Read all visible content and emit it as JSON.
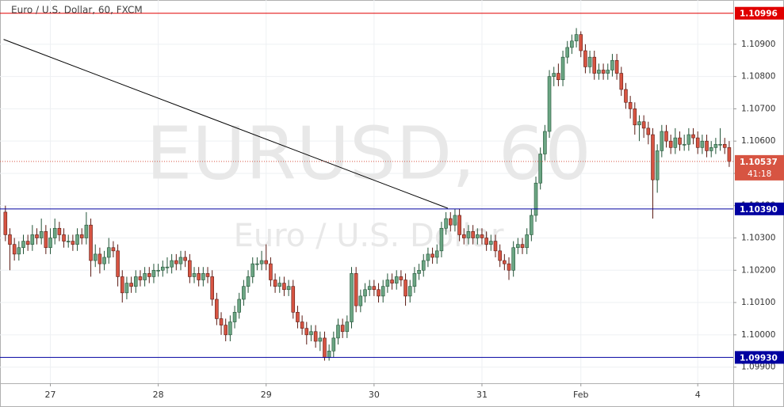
{
  "chart_data": {
    "type": "candlestick",
    "title": "Euro / U.S. Dollar, 60, FXCM",
    "watermark": "EURUSD, 60",
    "watermark_sub": "Euro / U.S. Dollar",
    "up_color": "#6ba583",
    "up_border": "#225437",
    "down_color": "#d75442",
    "down_border": "#5b1a13",
    "ylim": [
      1.0985,
      1.11037
    ],
    "yticks": [
      {
        "value": 1.099,
        "label": "1.09900"
      },
      {
        "value": 1.1,
        "label": "1.10000"
      },
      {
        "value": 1.101,
        "label": "1.10100"
      },
      {
        "value": 1.102,
        "label": "1.10200"
      },
      {
        "value": 1.103,
        "label": "1.10300"
      },
      {
        "value": 1.104,
        "label": "1.10400"
      },
      {
        "value": 1.105,
        "label": "1.10500"
      },
      {
        "value": 1.106,
        "label": "1.10600"
      },
      {
        "value": 1.107,
        "label": "1.10700"
      },
      {
        "value": 1.108,
        "label": "1.10800"
      },
      {
        "value": 1.109,
        "label": "1.10900"
      }
    ],
    "xticks": [
      {
        "value": 10,
        "label": "27"
      },
      {
        "value": 34,
        "label": "28"
      },
      {
        "value": 58,
        "label": "29"
      },
      {
        "value": 82,
        "label": "30"
      },
      {
        "value": 106,
        "label": "31"
      },
      {
        "value": 128,
        "label": "Feb"
      },
      {
        "value": 154,
        "label": "4"
      }
    ],
    "xlim": [
      -1.2,
      161.9
    ],
    "grid": true,
    "levels": [
      {
        "value": 1.10996,
        "label": "1.10996",
        "color": "#e00000"
      },
      {
        "value": 1.1039,
        "label": "1.10390",
        "color": "#0000a0"
      },
      {
        "value": 1.0993,
        "label": "1.09930",
        "color": "#0000a0"
      }
    ],
    "last": 1.10537,
    "countdown": "41:18",
    "last_color": "#d75442",
    "trendline": {
      "x": [
        -0.4,
        98.4
      ],
      "y": [
        1.10915,
        1.10392
      ],
      "color": "#000000"
    },
    "ohlc": [
      [
        1.1038,
        1.104,
        1.1029,
        1.1031
      ],
      [
        1.1031,
        1.1033,
        1.102,
        1.1028
      ],
      [
        1.1028,
        1.103,
        1.1023,
        1.1025
      ],
      [
        1.1025,
        1.1029,
        1.1023,
        1.1027
      ],
      [
        1.1027,
        1.1031,
        1.1025,
        1.1029
      ],
      [
        1.1029,
        1.1031,
        1.1026,
        1.1028
      ],
      [
        1.1028,
        1.1034,
        1.1026,
        1.1031
      ],
      [
        1.1031,
        1.1033,
        1.1028,
        1.103
      ],
      [
        1.103,
        1.1036,
        1.1028,
        1.1032
      ],
      [
        1.1032,
        1.1034,
        1.1025,
        1.1027
      ],
      [
        1.1027,
        1.1033,
        1.1025,
        1.103
      ],
      [
        1.103,
        1.1036,
        1.1028,
        1.1033
      ],
      [
        1.1033,
        1.1035,
        1.1029,
        1.1031
      ],
      [
        1.1031,
        1.1033,
        1.1027,
        1.1029
      ],
      [
        1.1029,
        1.1031,
        1.1027,
        1.1029
      ],
      [
        1.1029,
        1.1031,
        1.1026,
        1.1028
      ],
      [
        1.1028,
        1.1033,
        1.1026,
        1.1031
      ],
      [
        1.1031,
        1.1033,
        1.1028,
        1.103
      ],
      [
        1.103,
        1.1038,
        1.1028,
        1.1034
      ],
      [
        1.1034,
        1.1036,
        1.1018,
        1.1023
      ],
      [
        1.1023,
        1.1028,
        1.1021,
        1.1025
      ],
      [
        1.1025,
        1.1027,
        1.1019,
        1.1022
      ],
      [
        1.1022,
        1.1026,
        1.102,
        1.1024
      ],
      [
        1.1024,
        1.103,
        1.1022,
        1.1027
      ],
      [
        1.1027,
        1.1029,
        1.1024,
        1.1026
      ],
      [
        1.1026,
        1.1028,
        1.1015,
        1.1018
      ],
      [
        1.1018,
        1.102,
        1.101,
        1.1013
      ],
      [
        1.1013,
        1.1018,
        1.1011,
        1.1016
      ],
      [
        1.1016,
        1.1018,
        1.1013,
        1.1015
      ],
      [
        1.1015,
        1.102,
        1.1013,
        1.1018
      ],
      [
        1.1018,
        1.102,
        1.1015,
        1.1017
      ],
      [
        1.1017,
        1.1021,
        1.1015,
        1.1019
      ],
      [
        1.1019,
        1.1021,
        1.1016,
        1.1018
      ],
      [
        1.1018,
        1.1022,
        1.1016,
        1.102
      ],
      [
        1.102,
        1.1022,
        1.1018,
        1.102
      ],
      [
        1.102,
        1.1023,
        1.1018,
        1.1021
      ],
      [
        1.1021,
        1.1024,
        1.1019,
        1.1021
      ],
      [
        1.1021,
        1.1025,
        1.1019,
        1.1023
      ],
      [
        1.1023,
        1.1025,
        1.102,
        1.1022
      ],
      [
        1.1022,
        1.1026,
        1.102,
        1.1024
      ],
      [
        1.1024,
        1.1026,
        1.1021,
        1.1023
      ],
      [
        1.1023,
        1.1025,
        1.1016,
        1.1018
      ],
      [
        1.1018,
        1.1021,
        1.1016,
        1.1019
      ],
      [
        1.1019,
        1.1021,
        1.1015,
        1.1017
      ],
      [
        1.1017,
        1.1021,
        1.1015,
        1.1019
      ],
      [
        1.1019,
        1.1021,
        1.1016,
        1.1018
      ],
      [
        1.1018,
        1.102,
        1.1009,
        1.1011
      ],
      [
        1.1011,
        1.1013,
        1.1003,
        1.1005
      ],
      [
        1.1005,
        1.1007,
        1.1,
        1.1003
      ],
      [
        1.1003,
        1.1005,
        1.0998,
        1.1
      ],
      [
        1.1,
        1.1006,
        1.0998,
        1.1004
      ],
      [
        1.1004,
        1.1009,
        1.1002,
        1.1007
      ],
      [
        1.1007,
        1.1013,
        1.1005,
        1.1011
      ],
      [
        1.1011,
        1.1017,
        1.1009,
        1.1015
      ],
      [
        1.1015,
        1.102,
        1.1013,
        1.1018
      ],
      [
        1.1018,
        1.1024,
        1.1016,
        1.1022
      ],
      [
        1.1022,
        1.1024,
        1.102,
        1.1022
      ],
      [
        1.1022,
        1.1026,
        1.102,
        1.1023
      ],
      [
        1.1023,
        1.1028,
        1.102,
        1.1022
      ],
      [
        1.1022,
        1.1024,
        1.1015,
        1.1017
      ],
      [
        1.1017,
        1.1019,
        1.1013,
        1.1015
      ],
      [
        1.1015,
        1.1018,
        1.1013,
        1.1016
      ],
      [
        1.1016,
        1.1018,
        1.1012,
        1.1014
      ],
      [
        1.1014,
        1.1017,
        1.1012,
        1.1015
      ],
      [
        1.1015,
        1.1017,
        1.1005,
        1.1007
      ],
      [
        1.1007,
        1.1009,
        1.1002,
        1.1004
      ],
      [
        1.1004,
        1.1006,
        1.1,
        1.1002
      ],
      [
        1.1002,
        1.1004,
        1.0997,
        1.1
      ],
      [
        1.1,
        1.1003,
        1.0998,
        1.1001
      ],
      [
        1.1001,
        1.1003,
        1.0996,
        1.0998
      ],
      [
        1.0998,
        1.1001,
        1.0995,
        1.0999
      ],
      [
        1.0999,
        1.1001,
        1.0992,
        1.0993
      ],
      [
        1.0993,
        1.0997,
        1.0992,
        1.0995
      ],
      [
        1.0995,
        1.1001,
        1.0993,
        1.0999
      ],
      [
        1.0999,
        1.1005,
        1.0997,
        1.1003
      ],
      [
        1.1003,
        1.1005,
        1.0999,
        1.1001
      ],
      [
        1.1001,
        1.1006,
        1.0999,
        1.1004
      ],
      [
        1.1004,
        1.1021,
        1.1002,
        1.1019
      ],
      [
        1.1019,
        1.1021,
        1.1007,
        1.1009
      ],
      [
        1.1009,
        1.1014,
        1.1007,
        1.1012
      ],
      [
        1.1012,
        1.1016,
        1.101,
        1.1014
      ],
      [
        1.1014,
        1.1017,
        1.1012,
        1.1015
      ],
      [
        1.1015,
        1.1017,
        1.1012,
        1.1014
      ],
      [
        1.1014,
        1.1016,
        1.101,
        1.1012
      ],
      [
        1.1012,
        1.1017,
        1.101,
        1.1015
      ],
      [
        1.1015,
        1.1019,
        1.1013,
        1.1017
      ],
      [
        1.1017,
        1.1019,
        1.1014,
        1.1016
      ],
      [
        1.1016,
        1.102,
        1.1014,
        1.1018
      ],
      [
        1.1018,
        1.102,
        1.1015,
        1.1017
      ],
      [
        1.1017,
        1.1019,
        1.1009,
        1.1012
      ],
      [
        1.1012,
        1.1017,
        1.101,
        1.1015
      ],
      [
        1.1015,
        1.1021,
        1.1013,
        1.1019
      ],
      [
        1.1019,
        1.1022,
        1.1017,
        1.102
      ],
      [
        1.102,
        1.1025,
        1.1018,
        1.1023
      ],
      [
        1.1023,
        1.1027,
        1.1021,
        1.1025
      ],
      [
        1.1025,
        1.1027,
        1.1022,
        1.1024
      ],
      [
        1.1024,
        1.1028,
        1.1022,
        1.1026
      ],
      [
        1.1026,
        1.1035,
        1.1024,
        1.1033
      ],
      [
        1.1033,
        1.1038,
        1.1031,
        1.1036
      ],
      [
        1.1036,
        1.1038,
        1.1032,
        1.1034
      ],
      [
        1.1034,
        1.1039,
        1.1032,
        1.1037
      ],
      [
        1.1037,
        1.1039,
        1.1029,
        1.1031
      ],
      [
        1.1031,
        1.1033,
        1.1028,
        1.103
      ],
      [
        1.103,
        1.1034,
        1.1028,
        1.1032
      ],
      [
        1.1032,
        1.1034,
        1.1028,
        1.103
      ],
      [
        1.103,
        1.1033,
        1.1028,
        1.1031
      ],
      [
        1.1031,
        1.1033,
        1.1028,
        1.103
      ],
      [
        1.103,
        1.1032,
        1.1026,
        1.1028
      ],
      [
        1.1028,
        1.1031,
        1.1026,
        1.1029
      ],
      [
        1.1029,
        1.1031,
        1.1024,
        1.1026
      ],
      [
        1.1026,
        1.1028,
        1.1021,
        1.1023
      ],
      [
        1.1023,
        1.1025,
        1.102,
        1.1022
      ],
      [
        1.1022,
        1.1024,
        1.1017,
        1.102
      ],
      [
        1.102,
        1.1029,
        1.1018,
        1.1027
      ],
      [
        1.1027,
        1.103,
        1.1025,
        1.1028
      ],
      [
        1.1028,
        1.103,
        1.1025,
        1.1027
      ],
      [
        1.1027,
        1.1033,
        1.1025,
        1.1031
      ],
      [
        1.1031,
        1.1039,
        1.1029,
        1.1037
      ],
      [
        1.1037,
        1.1049,
        1.1035,
        1.1047
      ],
      [
        1.1047,
        1.1058,
        1.1045,
        1.1056
      ],
      [
        1.1056,
        1.1065,
        1.1054,
        1.1063
      ],
      [
        1.1063,
        1.1082,
        1.1061,
        1.108
      ],
      [
        1.108,
        1.1083,
        1.1077,
        1.1081
      ],
      [
        1.1081,
        1.1084,
        1.1077,
        1.1079
      ],
      [
        1.1079,
        1.1088,
        1.1077,
        1.1086
      ],
      [
        1.1086,
        1.1091,
        1.1084,
        1.1089
      ],
      [
        1.1089,
        1.1093,
        1.1087,
        1.1091
      ],
      [
        1.1091,
        1.1095,
        1.1089,
        1.1093
      ],
      [
        1.1093,
        1.1094,
        1.1086,
        1.1088
      ],
      [
        1.1088,
        1.109,
        1.1081,
        1.1083
      ],
      [
        1.1083,
        1.1088,
        1.1081,
        1.1086
      ],
      [
        1.1086,
        1.1088,
        1.1079,
        1.1081
      ],
      [
        1.1081,
        1.1084,
        1.1079,
        1.1082
      ],
      [
        1.1082,
        1.1084,
        1.1079,
        1.1081
      ],
      [
        1.1081,
        1.1084,
        1.1079,
        1.1082
      ],
      [
        1.1082,
        1.1087,
        1.108,
        1.1085
      ],
      [
        1.1085,
        1.1087,
        1.1079,
        1.1081
      ],
      [
        1.1081,
        1.1083,
        1.1074,
        1.1076
      ],
      [
        1.1076,
        1.1078,
        1.107,
        1.1072
      ],
      [
        1.1072,
        1.1074,
        1.1067,
        1.107
      ],
      [
        1.107,
        1.1072,
        1.1062,
        1.1065
      ],
      [
        1.1065,
        1.1068,
        1.106,
        1.1066
      ],
      [
        1.1066,
        1.1068,
        1.1061,
        1.1064
      ],
      [
        1.1064,
        1.1066,
        1.1059,
        1.1062
      ],
      [
        1.1062,
        1.1064,
        1.1036,
        1.1048
      ],
      [
        1.1048,
        1.1059,
        1.1044,
        1.1057
      ],
      [
        1.1057,
        1.1065,
        1.1055,
        1.1063
      ],
      [
        1.1063,
        1.1065,
        1.1058,
        1.106
      ],
      [
        1.106,
        1.1062,
        1.1056,
        1.1058
      ],
      [
        1.1058,
        1.1064,
        1.1056,
        1.1061
      ],
      [
        1.1061,
        1.1063,
        1.1057,
        1.1059
      ],
      [
        1.1059,
        1.1062,
        1.1057,
        1.1059
      ],
      [
        1.1059,
        1.1064,
        1.1057,
        1.1062
      ],
      [
        1.1062,
        1.1064,
        1.1059,
        1.1061
      ],
      [
        1.1061,
        1.1063,
        1.1056,
        1.1058
      ],
      [
        1.1058,
        1.1062,
        1.1056,
        1.106
      ],
      [
        1.106,
        1.1062,
        1.1055,
        1.1057
      ],
      [
        1.1057,
        1.106,
        1.1055,
        1.1058
      ],
      [
        1.1058,
        1.1061,
        1.1056,
        1.1059
      ],
      [
        1.1059,
        1.1064,
        1.1057,
        1.1059
      ],
      [
        1.1059,
        1.1061,
        1.1056,
        1.1058
      ],
      [
        1.1058,
        1.106,
        1.1052,
        1.10537
      ]
    ]
  }
}
